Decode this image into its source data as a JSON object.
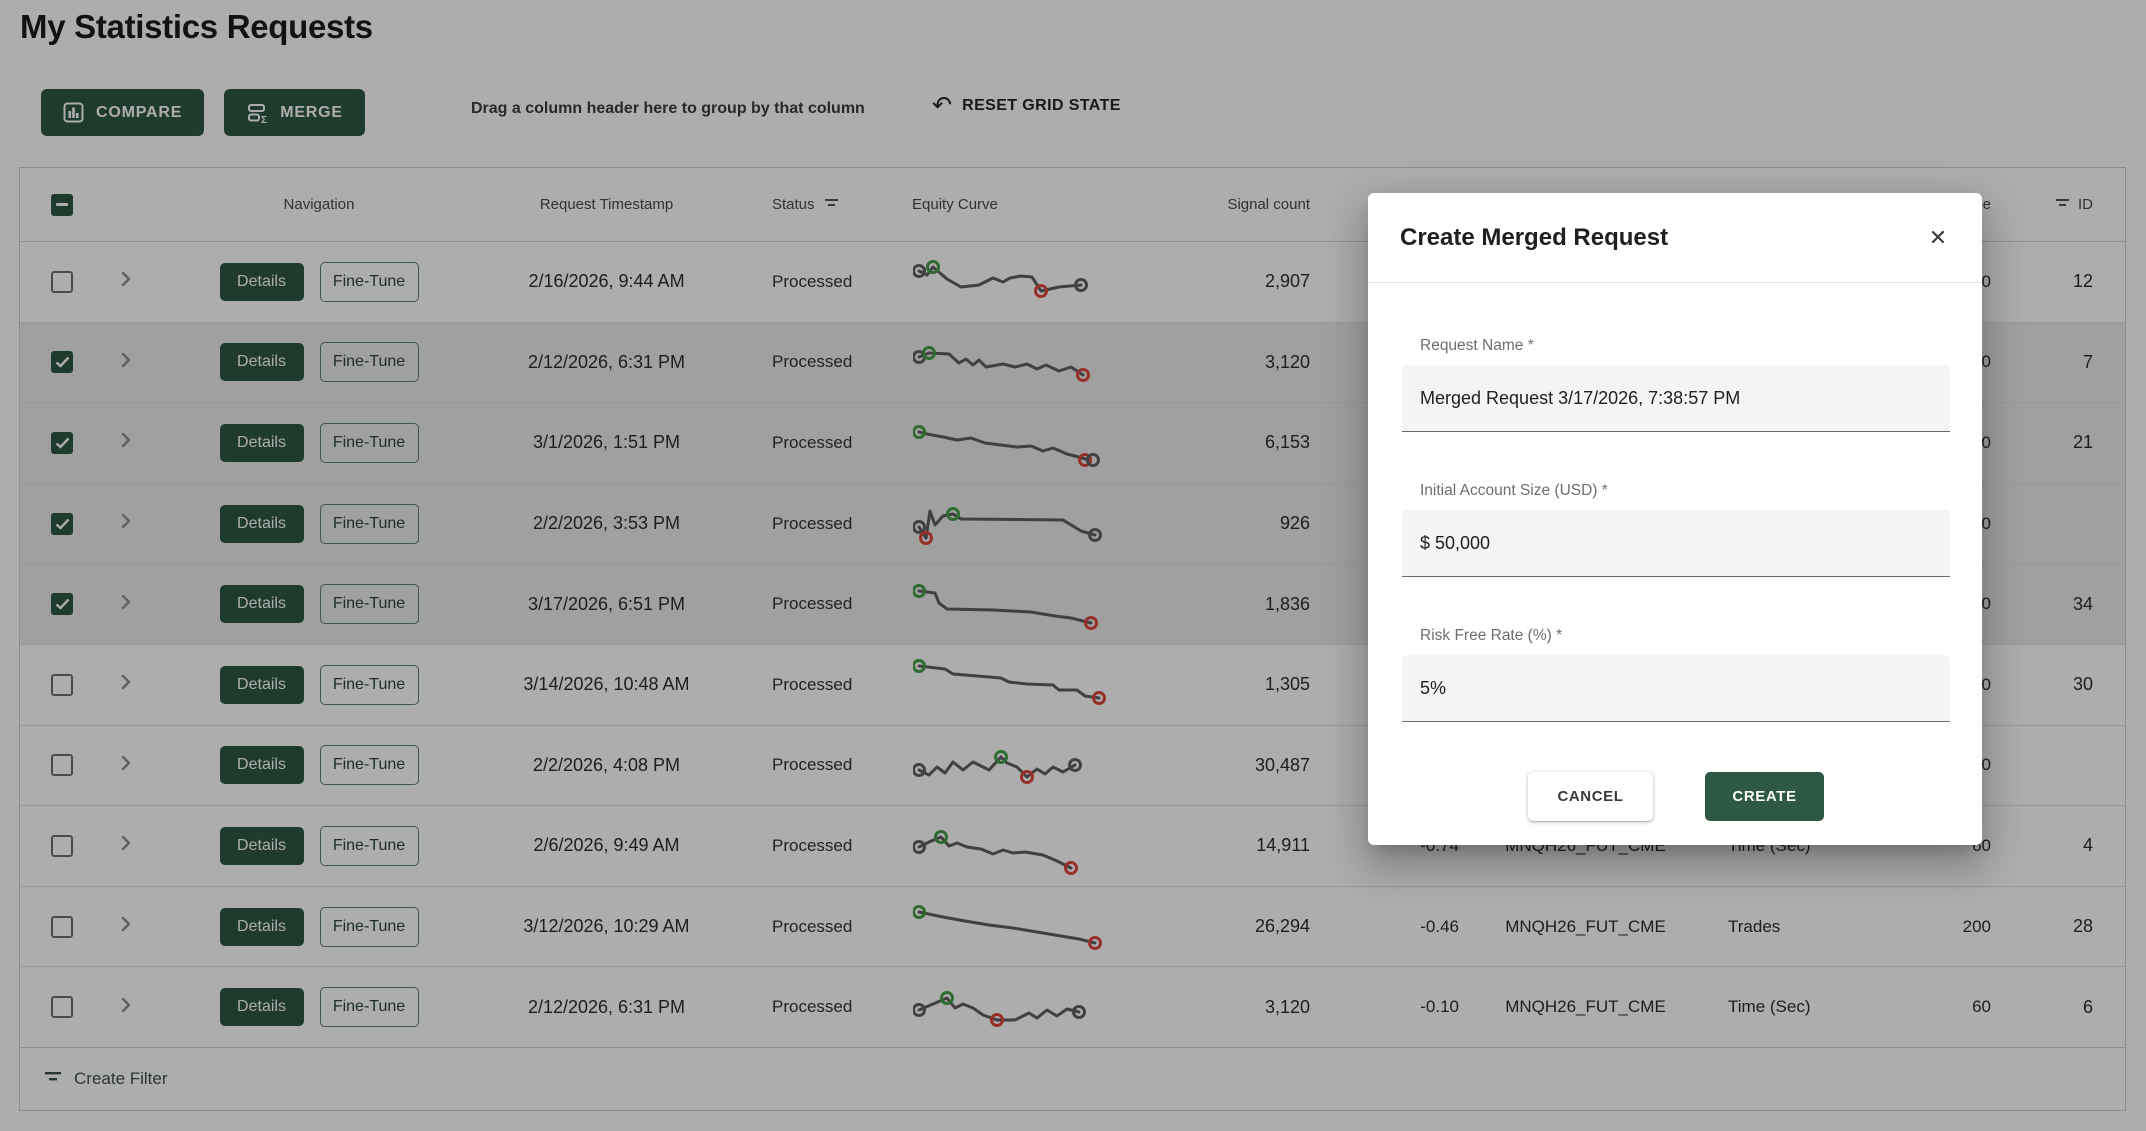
{
  "page": {
    "title": "My Statistics Requests",
    "toolbar": {
      "compare_label": "COMPARE",
      "merge_label": "MERGE",
      "drag_hint": "Drag a column header here to group by that column",
      "reset_label": "RESET GRID STATE"
    },
    "footer": {
      "create_filter_label": "Create Filter"
    }
  },
  "theme": {
    "accent_green": "#2d5843",
    "marker_green": "#43a047",
    "marker_red": "#e0483e",
    "marker_grey": "#616161",
    "spark_line": "#5f5f5f"
  },
  "grid": {
    "columns": {
      "navigation": "Navigation",
      "timestamp": "Request Timestamp",
      "status": "Status",
      "equity": "Equity Curve",
      "signal": "Signal count",
      "bar_size": "Bar Size",
      "id": "ID"
    },
    "row_buttons": {
      "details": "Details",
      "finetune": "Fine-Tune"
    },
    "rows": [
      {
        "checked": false,
        "ts": "2/16/2026, 9:44 AM",
        "status": "Processed",
        "signal": "2,907",
        "metric": "",
        "symbol": "",
        "bar_type": "",
        "bar_size": "60",
        "id": "12",
        "spark": {
          "pts": [
            [
              6,
              22
            ],
            [
              14,
              26
            ],
            [
              20,
              18
            ],
            [
              34,
              30
            ],
            [
              48,
              38
            ],
            [
              66,
              36
            ],
            [
              80,
              29
            ],
            [
              90,
              33
            ],
            [
              97,
              29
            ],
            [
              108,
              27
            ],
            [
              119,
              28
            ],
            [
              128,
              42
            ],
            [
              146,
              38
            ],
            [
              168,
              36
            ]
          ],
          "markers": [
            [
              6,
              22,
              "grey"
            ],
            [
              20,
              18,
              "green"
            ],
            [
              128,
              42,
              "red"
            ],
            [
              168,
              36,
              "grey"
            ]
          ]
        }
      },
      {
        "checked": true,
        "ts": "2/12/2026, 6:31 PM",
        "status": "Processed",
        "signal": "3,120",
        "metric": "",
        "symbol": "",
        "bar_type": "",
        "bar_size": "60",
        "id": "7",
        "spark": {
          "pts": [
            [
              6,
              28
            ],
            [
              16,
              24
            ],
            [
              36,
              25
            ],
            [
              46,
              34
            ],
            [
              53,
              30
            ],
            [
              60,
              36
            ],
            [
              66,
              31
            ],
            [
              73,
              38
            ],
            [
              90,
              35
            ],
            [
              102,
              38
            ],
            [
              114,
              35
            ],
            [
              124,
              40
            ],
            [
              133,
              36
            ],
            [
              146,
              42
            ],
            [
              158,
              38
            ],
            [
              170,
              46
            ]
          ],
          "markers": [
            [
              6,
              28,
              "grey"
            ],
            [
              16,
              24,
              "green"
            ],
            [
              170,
              46,
              "red"
            ]
          ]
        }
      },
      {
        "checked": true,
        "ts": "3/1/2026, 1:51 PM",
        "status": "Processed",
        "signal": "6,153",
        "metric": "",
        "symbol": "",
        "bar_type": "",
        "bar_size": "60",
        "id": "21",
        "spark": {
          "pts": [
            [
              6,
              22
            ],
            [
              14,
              24
            ],
            [
              30,
              27
            ],
            [
              44,
              30
            ],
            [
              58,
              28
            ],
            [
              72,
              33
            ],
            [
              88,
              35
            ],
            [
              104,
              37
            ],
            [
              118,
              36
            ],
            [
              130,
              41
            ],
            [
              140,
              38
            ],
            [
              154,
              44
            ],
            [
              162,
              46
            ],
            [
              176,
              50
            ]
          ],
          "markers": [
            [
              172,
              50,
              "red"
            ],
            [
              180,
              50,
              "grey"
            ],
            [
              6,
              22,
              "green"
            ]
          ]
        }
      },
      {
        "checked": true,
        "ts": "2/2/2026, 3:53 PM",
        "status": "Processed",
        "signal": "926",
        "metric": "",
        "symbol": "",
        "bar_type": "",
        "bar_size": "60",
        "id": "",
        "spark": {
          "pts": [
            [
              6,
              36
            ],
            [
              13,
              47
            ],
            [
              17,
              20
            ],
            [
              22,
              34
            ],
            [
              30,
              25
            ],
            [
              40,
              23
            ],
            [
              48,
              28
            ],
            [
              150,
              29
            ],
            [
              168,
              40
            ],
            [
              182,
              44
            ]
          ],
          "markers": [
            [
              6,
              36,
              "grey"
            ],
            [
              13,
              47,
              "red"
            ],
            [
              40,
              23,
              "green"
            ],
            [
              182,
              44,
              "grey"
            ]
          ]
        }
      },
      {
        "checked": true,
        "ts": "3/17/2026, 6:51 PM",
        "status": "Processed",
        "signal": "1,836",
        "metric": "",
        "symbol": "",
        "bar_type": "",
        "bar_size": "60",
        "id": "34",
        "spark": {
          "pts": [
            [
              6,
              20
            ],
            [
              22,
              22
            ],
            [
              26,
              32
            ],
            [
              34,
              38
            ],
            [
              80,
              39
            ],
            [
              118,
              41
            ],
            [
              142,
              45
            ],
            [
              158,
              47
            ],
            [
              178,
              52
            ]
          ],
          "markers": [
            [
              6,
              20,
              "green"
            ],
            [
              178,
              52,
              "red"
            ]
          ]
        }
      },
      {
        "checked": false,
        "ts": "3/14/2026, 10:48 AM",
        "status": "Processed",
        "signal": "1,305",
        "metric": "",
        "symbol": "",
        "bar_type": "",
        "bar_size": "60",
        "id": "30",
        "spark": {
          "pts": [
            [
              6,
              14
            ],
            [
              32,
              17
            ],
            [
              40,
              22
            ],
            [
              64,
              24
            ],
            [
              88,
              26
            ],
            [
              96,
              30
            ],
            [
              114,
              32
            ],
            [
              140,
              33
            ],
            [
              146,
              38
            ],
            [
              164,
              38
            ],
            [
              172,
              44
            ],
            [
              186,
              46
            ]
          ],
          "markers": [
            [
              6,
              14,
              "green"
            ],
            [
              186,
              46,
              "red"
            ]
          ]
        }
      },
      {
        "checked": false,
        "ts": "2/2/2026, 4:08 PM",
        "status": "Processed",
        "signal": "30,487",
        "metric": "",
        "symbol": "",
        "bar_type": "",
        "bar_size": "60",
        "id": "",
        "spark": {
          "pts": [
            [
              6,
              38
            ],
            [
              16,
              43
            ],
            [
              24,
              35
            ],
            [
              32,
              41
            ],
            [
              40,
              30
            ],
            [
              50,
              38
            ],
            [
              60,
              30
            ],
            [
              76,
              38
            ],
            [
              88,
              25
            ],
            [
              94,
              31
            ],
            [
              104,
              35
            ],
            [
              114,
              45
            ],
            [
              124,
              37
            ],
            [
              132,
              42
            ],
            [
              140,
              35
            ],
            [
              150,
              40
            ],
            [
              162,
              33
            ]
          ],
          "markers": [
            [
              6,
              38,
              "grey"
            ],
            [
              88,
              25,
              "green"
            ],
            [
              114,
              45,
              "red"
            ],
            [
              162,
              33,
              "grey"
            ]
          ]
        }
      },
      {
        "checked": false,
        "ts": "2/6/2026, 9:49 AM",
        "status": "Processed",
        "signal": "14,911",
        "metric": "-0.74",
        "symbol": "MNQH26_FUT_CME",
        "bar_type": "Time (Sec)",
        "bar_size": "60",
        "id": "4",
        "spark": {
          "pts": [
            [
              6,
              34
            ],
            [
              16,
              29
            ],
            [
              28,
              24
            ],
            [
              36,
              33
            ],
            [
              44,
              30
            ],
            [
              54,
              34
            ],
            [
              68,
              36
            ],
            [
              80,
              41
            ],
            [
              90,
              37
            ],
            [
              100,
              40
            ],
            [
              112,
              39
            ],
            [
              130,
              42
            ],
            [
              144,
              48
            ],
            [
              158,
              55
            ]
          ],
          "markers": [
            [
              6,
              34,
              "grey"
            ],
            [
              28,
              24,
              "green"
            ],
            [
              158,
              55,
              "red"
            ]
          ]
        }
      },
      {
        "checked": false,
        "ts": "3/12/2026, 10:29 AM",
        "status": "Processed",
        "signal": "26,294",
        "metric": "-0.46",
        "symbol": "MNQH26_FUT_CME",
        "bar_type": "Trades",
        "bar_size": "200",
        "id": "28",
        "spark": {
          "pts": [
            [
              6,
              18
            ],
            [
              30,
              23
            ],
            [
              52,
              27
            ],
            [
              76,
              31
            ],
            [
              100,
              34
            ],
            [
              124,
              38
            ],
            [
              148,
              42
            ],
            [
              166,
              45
            ],
            [
              182,
              49
            ]
          ],
          "markers": [
            [
              6,
              18,
              "green"
            ],
            [
              182,
              49,
              "red"
            ]
          ]
        }
      },
      {
        "checked": false,
        "ts": "2/12/2026, 6:31 PM",
        "status": "Processed",
        "signal": "3,120",
        "metric": "-0.10",
        "symbol": "MNQH26_FUT_CME",
        "bar_type": "Time (Sec)",
        "bar_size": "60",
        "id": "6",
        "spark": {
          "pts": [
            [
              6,
              36
            ],
            [
              20,
              30
            ],
            [
              34,
              24
            ],
            [
              42,
              34
            ],
            [
              50,
              30
            ],
            [
              60,
              34
            ],
            [
              70,
              41
            ],
            [
              84,
              46
            ],
            [
              102,
              46
            ],
            [
              116,
              39
            ],
            [
              124,
              44
            ],
            [
              134,
              36
            ],
            [
              144,
              42
            ],
            [
              154,
              35
            ],
            [
              166,
              38
            ]
          ],
          "markers": [
            [
              6,
              36,
              "grey"
            ],
            [
              34,
              24,
              "green"
            ],
            [
              84,
              46,
              "red"
            ],
            [
              166,
              38,
              "grey"
            ]
          ]
        }
      }
    ]
  },
  "modal": {
    "title": "Create Merged Request",
    "close_glyph": "✕",
    "fields": [
      {
        "label": "Request Name *",
        "value": "Merged Request 3/17/2026, 7:38:57 PM"
      },
      {
        "label": "Initial Account Size (USD) *",
        "value": "$ 50,000"
      },
      {
        "label": "Risk Free Rate (%) *",
        "value": "5%"
      }
    ],
    "cancel_label": "CANCEL",
    "create_label": "CREATE"
  }
}
